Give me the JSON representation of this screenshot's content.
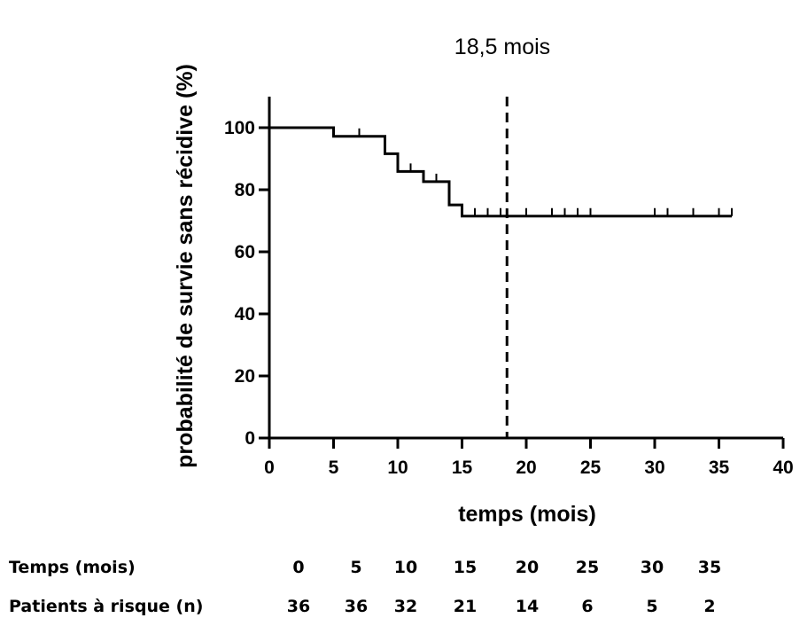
{
  "chart_data": {
    "type": "line",
    "annotation": "18,5 mois",
    "ylabel": "probabilité de survie sans récidive (%)",
    "xlabel": "temps (mois)",
    "xlim": [
      0,
      40
    ],
    "ylim": [
      0,
      110
    ],
    "xticks": [
      "0",
      "5",
      "10",
      "15",
      "20",
      "25",
      "30",
      "35",
      "40"
    ],
    "yticks": [
      "0",
      "20",
      "40",
      "60",
      "80",
      "100"
    ],
    "grid": false,
    "median_line_x": 18.5,
    "series": [
      {
        "steps": [
          [
            0,
            100
          ],
          [
            5,
            97.2
          ],
          [
            9,
            91.6
          ],
          [
            10,
            85.9
          ],
          [
            12,
            82.6
          ],
          [
            14,
            75.1
          ],
          [
            15,
            71.5
          ],
          [
            36,
            71.5
          ]
        ],
        "censored": [
          [
            7,
            97.2
          ],
          [
            11,
            85.9
          ],
          [
            13,
            82.6
          ],
          [
            16,
            71.5
          ],
          [
            17,
            71.5
          ],
          [
            18,
            71.5
          ],
          [
            20,
            71.5
          ],
          [
            22,
            71.5
          ],
          [
            23,
            71.5
          ],
          [
            24,
            71.5
          ],
          [
            25,
            71.5
          ],
          [
            30,
            71.5
          ],
          [
            31,
            71.5
          ],
          [
            33,
            71.5
          ],
          [
            35,
            71.5
          ],
          [
            36,
            71.5
          ]
        ]
      }
    ]
  },
  "risk_table": {
    "time_label": "Temps (mois)",
    "patients_label": "Patients à risque (n)",
    "times": [
      "0",
      "5",
      "10",
      "15",
      "20",
      "25",
      "30",
      "35"
    ],
    "patients": [
      "36",
      "36",
      "32",
      "21",
      "14",
      "6",
      "5",
      "2"
    ]
  }
}
